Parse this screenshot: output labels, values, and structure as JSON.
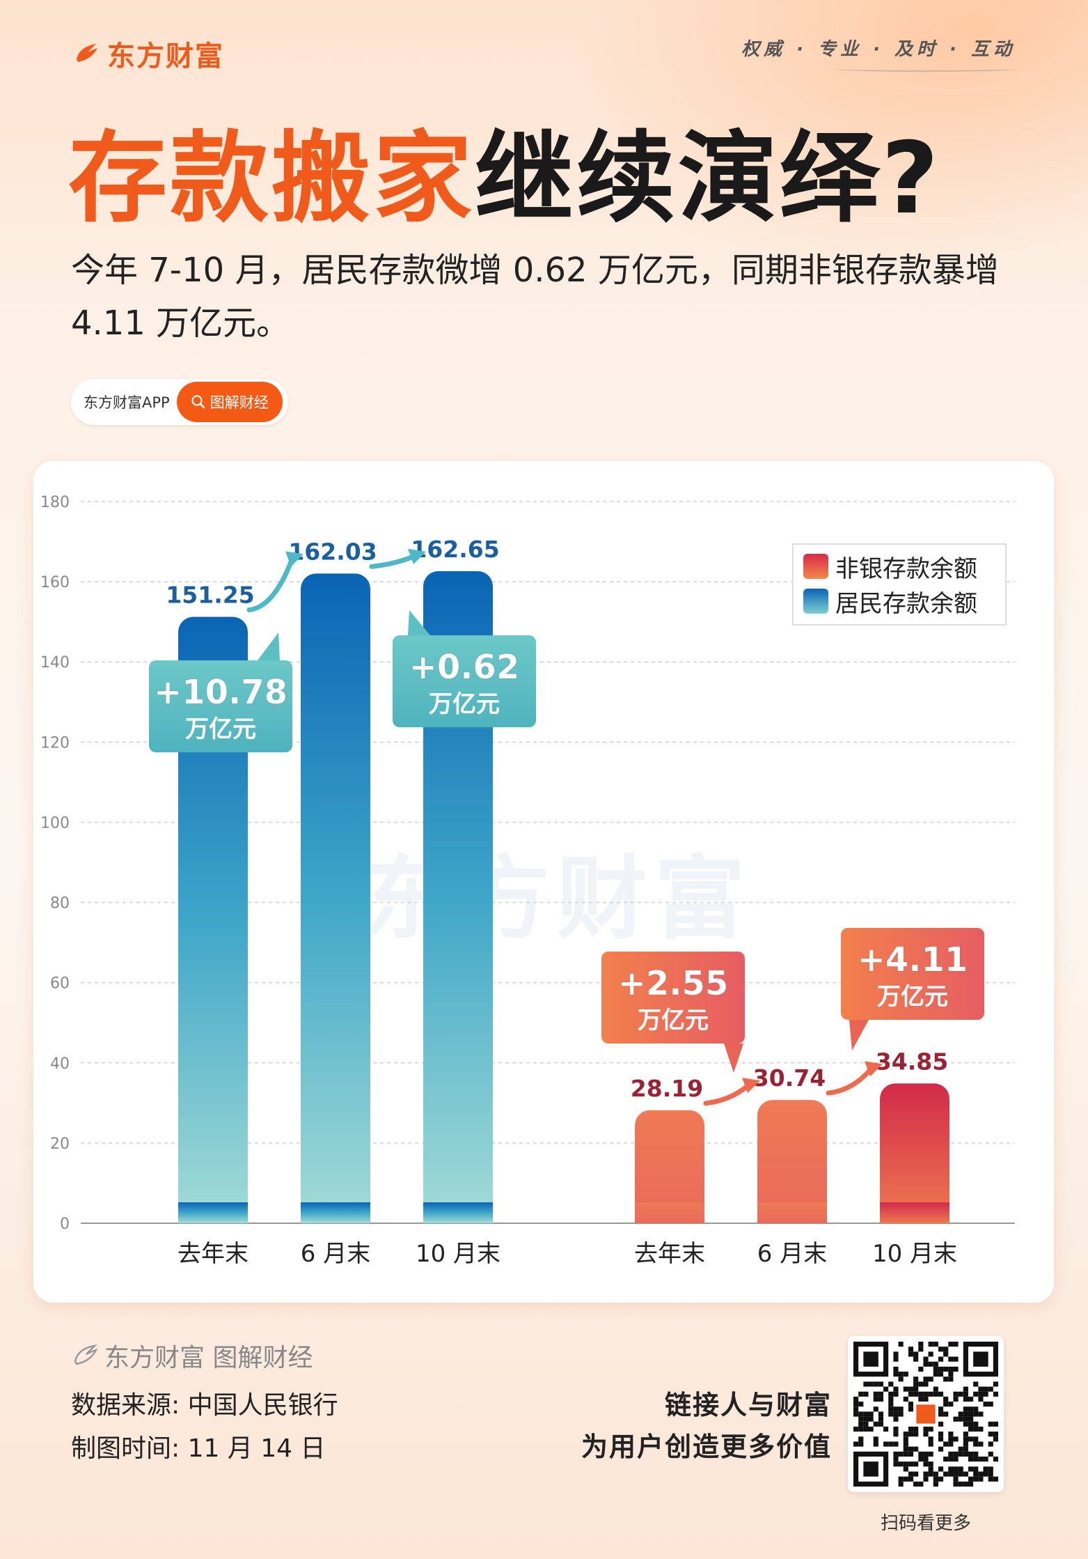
{
  "header": {
    "brand": "东方财富",
    "slogan": "权威 · 专业 · 及时 · 互动",
    "headline_orange": "存款搬家",
    "headline_black": "继续演绎?",
    "lead": "今年 7-10 月，居民存款微增 0.62 万亿元，同期非银存款暴增 4.11 万亿元。"
  },
  "tag": {
    "app": "东方财富APP",
    "pill": "图解财经"
  },
  "watermark": "东方财富",
  "colors": {
    "brand_orange": "#f05a1a",
    "blue_top": "#0a64b4",
    "blue_bottom": "#a4dcd6",
    "orange_bar": "#ef7a55",
    "red_bar": "#d22a4a",
    "teal_callout": "#5bbfc4",
    "red_callout": "#ee6a4e",
    "blue_label": "#1a5fa0",
    "red_label": "#9b2233"
  },
  "chart_data": {
    "type": "bar",
    "ylim": [
      0,
      180
    ],
    "yticks": [
      0,
      20,
      40,
      60,
      80,
      100,
      120,
      140,
      160,
      180
    ],
    "grid": true,
    "legend_position": "top-right",
    "legend": [
      "非银存款余额",
      "居民存款余额"
    ],
    "groups": [
      {
        "series": "居民存款余额",
        "categories": [
          "去年末",
          "6 月末",
          "10 月末"
        ],
        "values": [
          151.25,
          162.03,
          162.65
        ],
        "value_labels": [
          "151.25",
          "162.03",
          "162.65"
        ],
        "callouts": [
          {
            "after_index": 0,
            "line1": "+10.78",
            "line2": "万亿元"
          },
          {
            "after_index": 1,
            "line1": "+0.62",
            "line2": "万亿元"
          }
        ]
      },
      {
        "series": "非银存款余额",
        "categories": [
          "去年末",
          "6 月末",
          "10 月末"
        ],
        "values": [
          28.19,
          30.74,
          34.85
        ],
        "value_labels": [
          "28.19",
          "30.74",
          "34.85"
        ],
        "callouts": [
          {
            "after_index": 0,
            "line1": "+2.55",
            "line2": "万亿元"
          },
          {
            "after_index": 1,
            "line1": "+4.11",
            "line2": "万亿元"
          }
        ]
      }
    ]
  },
  "footer": {
    "brand": "东方财富 图解财经",
    "source": "数据来源: 中国人民银行",
    "date": "制图时间: 11 月 14 日",
    "motto1": "链接人与财富",
    "motto2": "为用户创造更多价值",
    "qr_caption": "扫码看更多"
  }
}
